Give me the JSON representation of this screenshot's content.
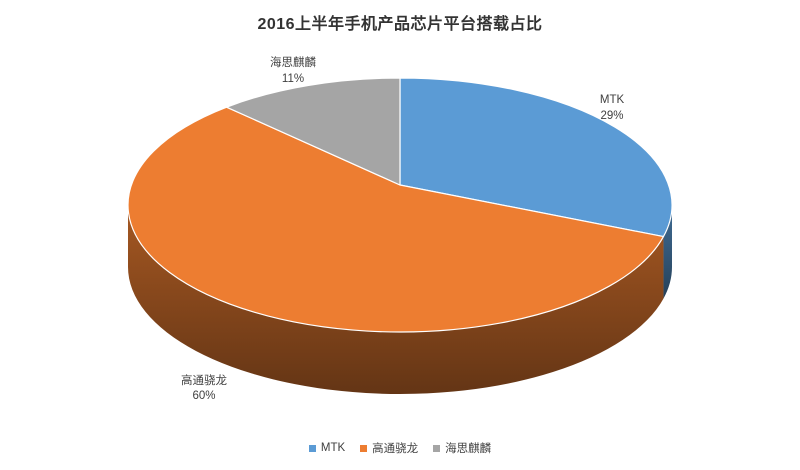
{
  "chart_data": {
    "type": "pie",
    "is_3d": true,
    "title": "2016上半年手机产品芯片平台搭载占比",
    "unit": "%",
    "start_angle_deg": 0,
    "direction": "clockwise",
    "legend_position": "bottom",
    "slices": [
      {
        "label": "MTK",
        "value": 29,
        "pct_label": "29%",
        "color": "#5B9BD5"
      },
      {
        "label": "高通骁龙",
        "value": 60,
        "pct_label": "60%",
        "color": "#ED7D31"
      },
      {
        "label": "海思麒麟",
        "value": 11,
        "pct_label": "11%",
        "color": "#A5A5A5"
      }
    ],
    "colors": {
      "label_text": "#404040",
      "title_text": "#333333",
      "background": "#ffffff"
    }
  }
}
